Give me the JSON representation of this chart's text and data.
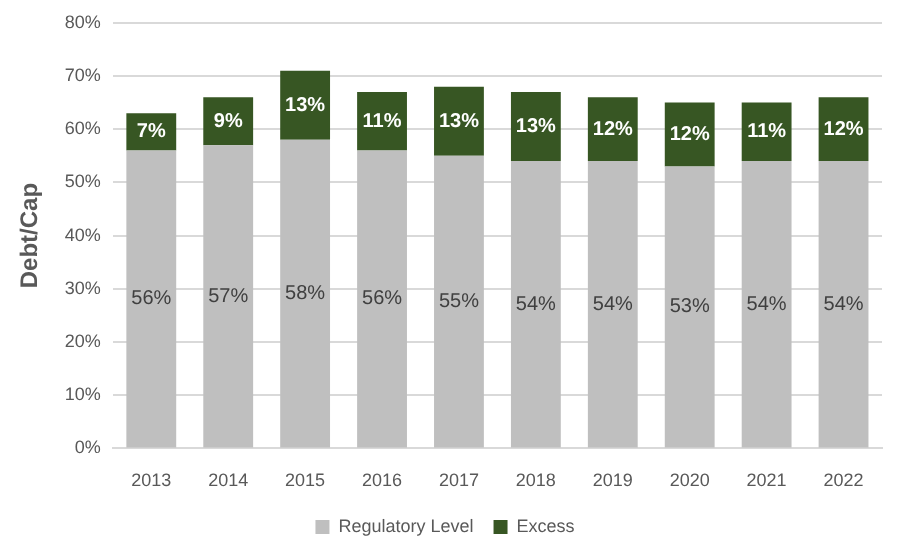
{
  "chart_data": {
    "type": "bar",
    "ylabel": "Debt/Cap",
    "stacked": true,
    "categories": [
      "2013",
      "2014",
      "2015",
      "2016",
      "2017",
      "2018",
      "2019",
      "2020",
      "2021",
      "2022"
    ],
    "series": [
      {
        "name": "Regulatory Level",
        "color": "#bfbfbf",
        "values": [
          56,
          57,
          58,
          56,
          55,
          54,
          54,
          53,
          54,
          54
        ],
        "value_labels": [
          "56%",
          "57%",
          "58%",
          "56%",
          "55%",
          "54%",
          "54%",
          "53%",
          "54%",
          "54%"
        ]
      },
      {
        "name": "Excess",
        "color": "#375623",
        "values": [
          7,
          9,
          13,
          11,
          13,
          13,
          12,
          12,
          11,
          12
        ],
        "value_labels": [
          "7%",
          "9%",
          "13%",
          "11%",
          "13%",
          "13%",
          "12%",
          "12%",
          "11%",
          "12%"
        ]
      }
    ],
    "ylim": [
      0,
      80
    ],
    "yticks": [
      {
        "value": 0,
        "label": "0%"
      },
      {
        "value": 10,
        "label": "10%"
      },
      {
        "value": 20,
        "label": "20%"
      },
      {
        "value": 30,
        "label": "30%"
      },
      {
        "value": 40,
        "label": "40%"
      },
      {
        "value": 50,
        "label": "50%"
      },
      {
        "value": 60,
        "label": "60%"
      },
      {
        "value": 70,
        "label": "70%"
      },
      {
        "value": 80,
        "label": "80%"
      }
    ],
    "grid": "y",
    "legend": "bottom"
  }
}
